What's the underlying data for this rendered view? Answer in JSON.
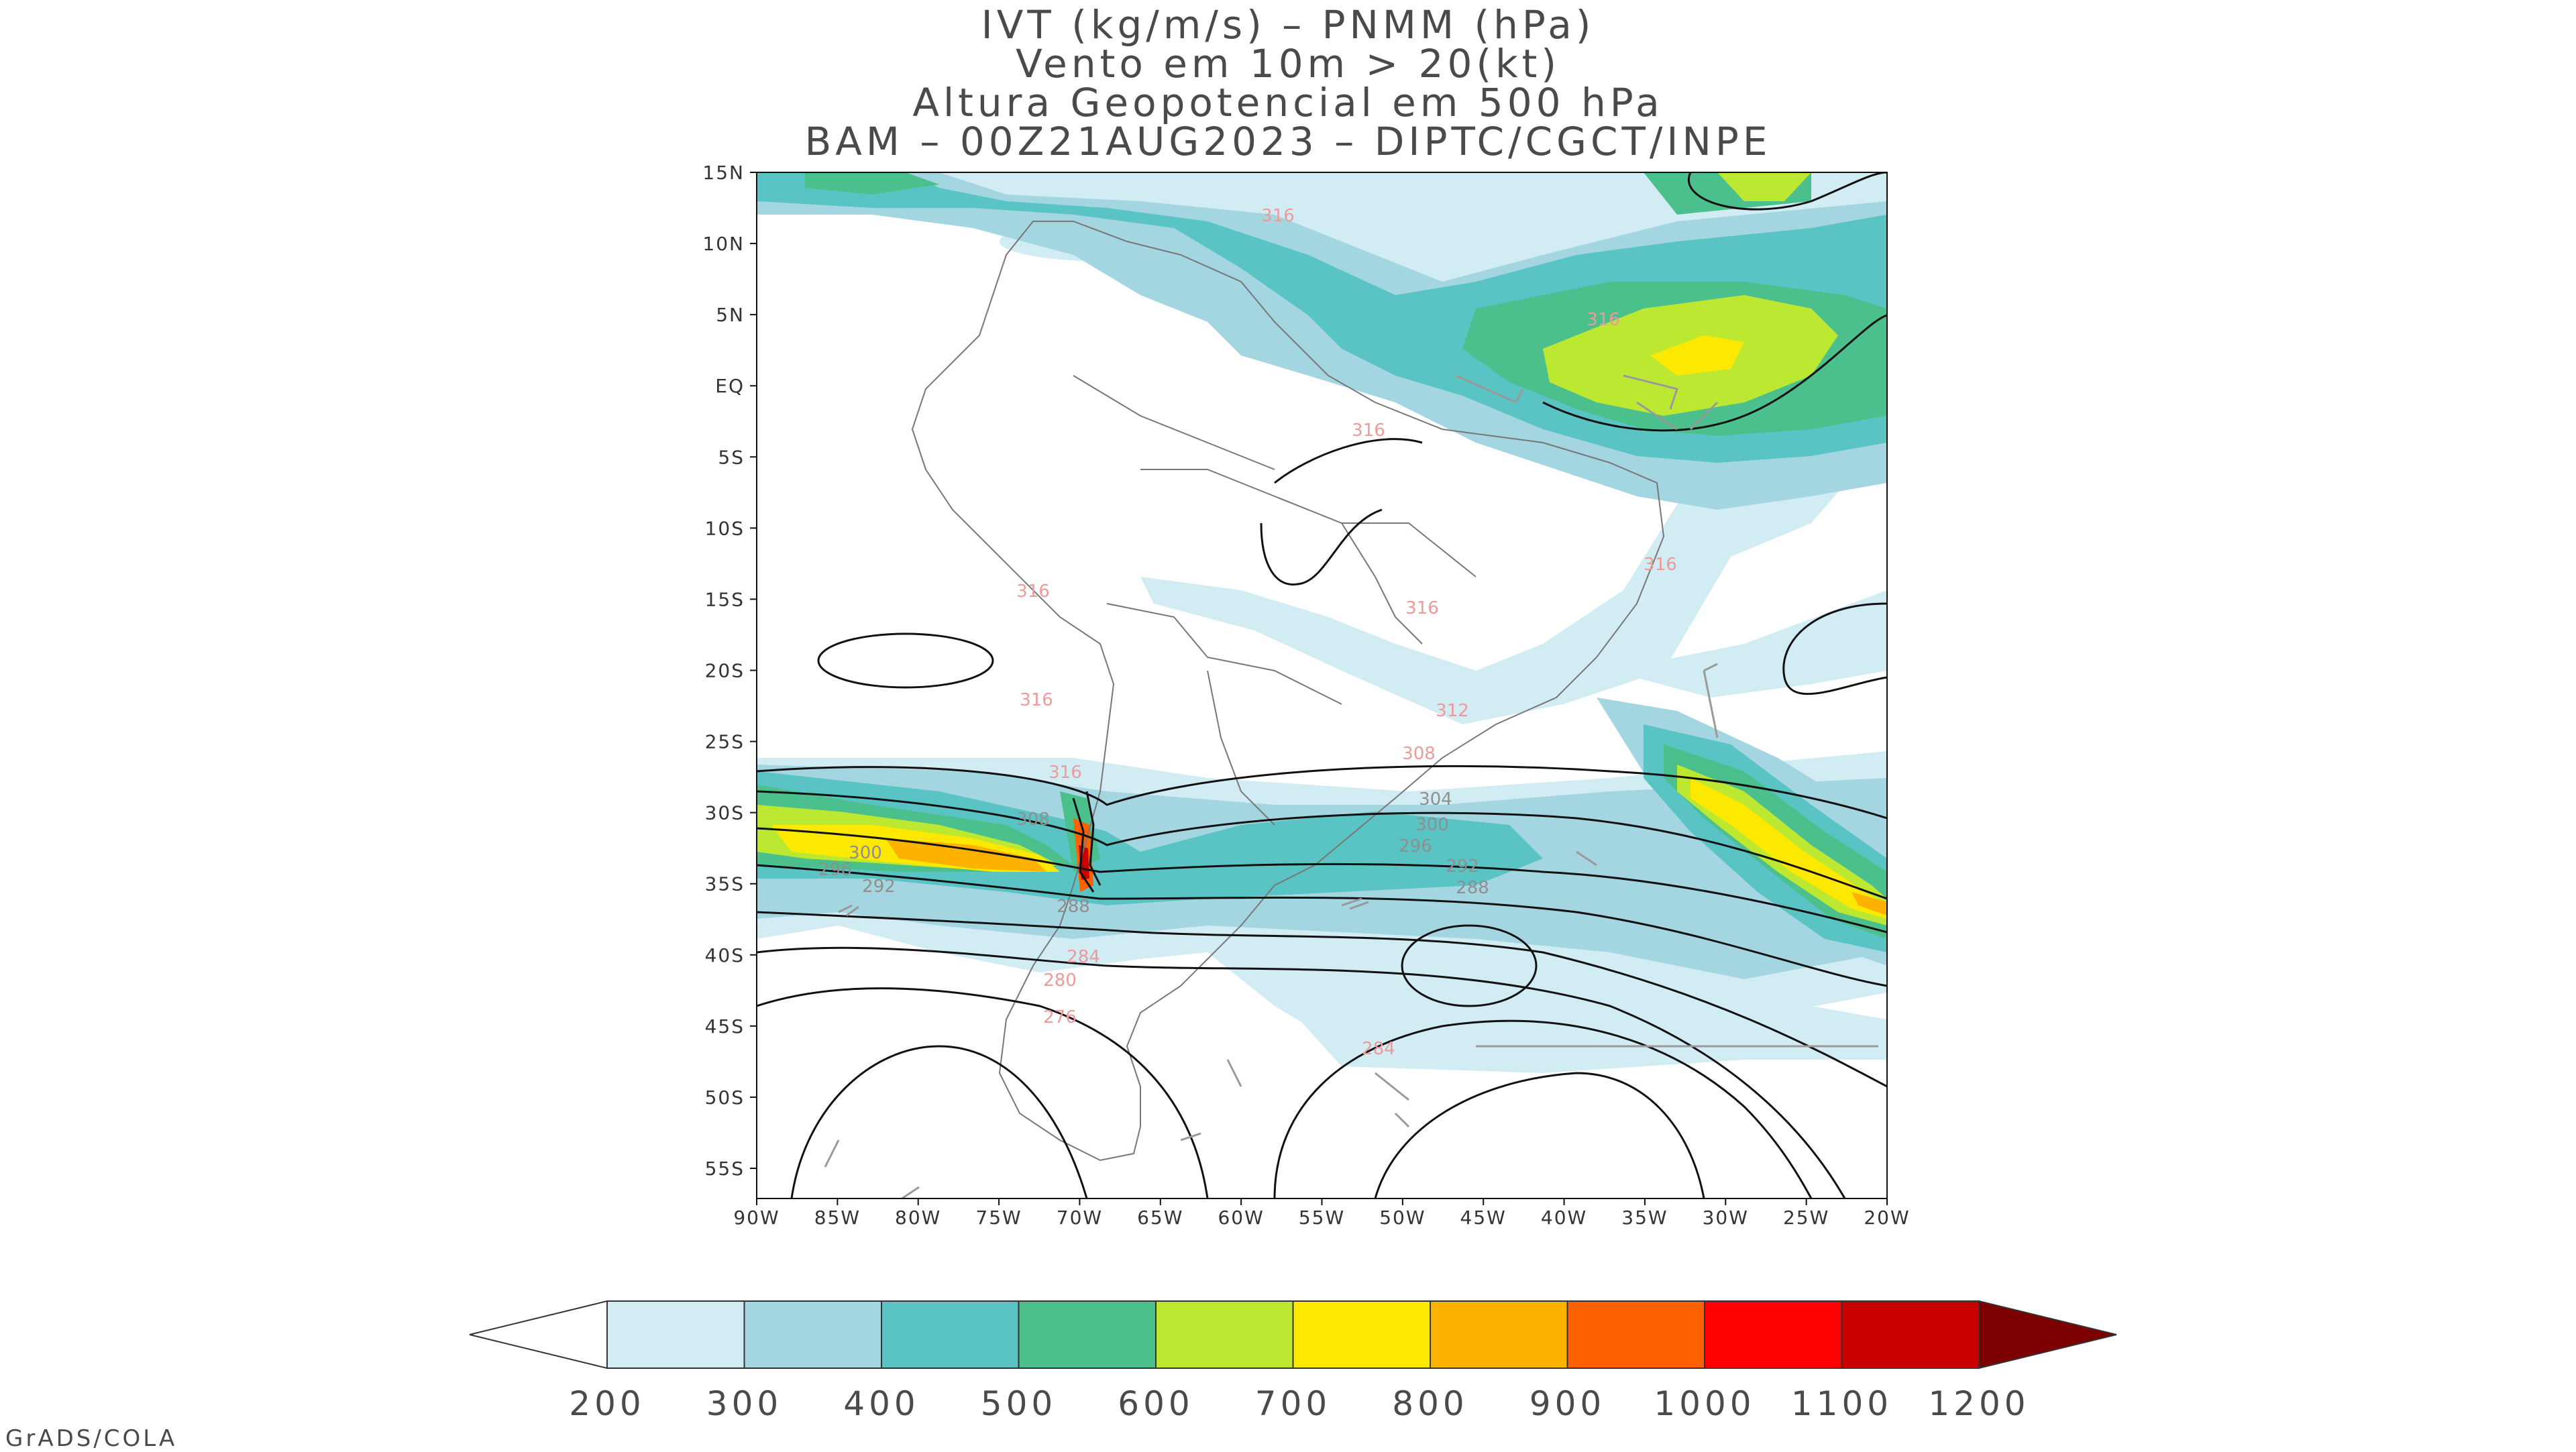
{
  "title": {
    "line1": "IVT (kg/m/s) – PNMM (hPa)",
    "line2": "Vento em 10m > 20(kt)",
    "line3": "Altura Geopotencial em 500 hPa",
    "line4": "BAM – 00Z21AUG2023 – DIPTC/CGCT/INPE"
  },
  "lat_labels": [
    "15N",
    "10N",
    "5N",
    "EQ",
    "5S",
    "10S",
    "15S",
    "20S",
    "25S",
    "30S",
    "35S",
    "40S",
    "45S",
    "50S",
    "55S"
  ],
  "lon_labels": [
    "90W",
    "85W",
    "80W",
    "75W",
    "70W",
    "65W",
    "60W",
    "55W",
    "50W",
    "45W",
    "40W",
    "35W",
    "30W",
    "25W",
    "20W"
  ],
  "colorbar": {
    "labels": [
      "200",
      "300",
      "400",
      "500",
      "600",
      "700",
      "800",
      "900",
      "1000",
      "1100",
      "1200"
    ],
    "colors": [
      "#d2ecf4",
      "#a4d6e2",
      "#5ac4c4",
      "#4cc08c",
      "#bde832",
      "#fde800",
      "#fdb200",
      "#fd6200",
      "#fd0000",
      "#c80000",
      "#7d0000"
    ]
  },
  "contour_labels": {
    "pink": [
      "316",
      "316",
      "316",
      "316",
      "316",
      "316",
      "316",
      "312",
      "316",
      "308",
      "284",
      "280",
      "276",
      "284"
    ],
    "gray": [
      "300",
      "296",
      "292",
      "304",
      "300",
      "296",
      "292",
      "288",
      "288",
      "308"
    ]
  },
  "credit": "GrADS/COLA"
}
